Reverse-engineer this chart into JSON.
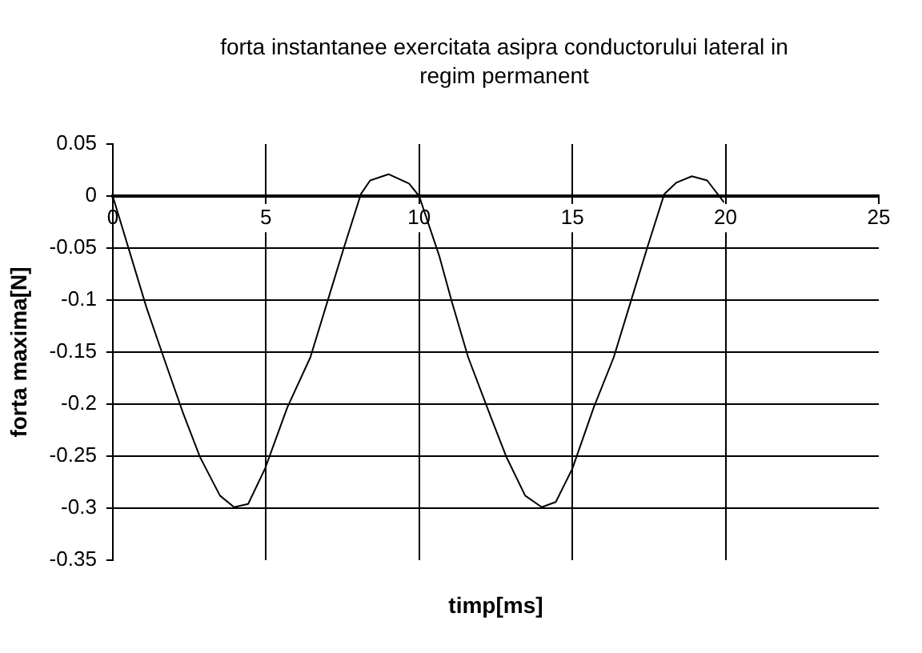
{
  "chart_data": {
    "type": "line",
    "title": "forta instantanee exercitata asipra conductorului lateral in regim permanent",
    "xlabel": "timp[ms]",
    "ylabel": "forta maxima[N]",
    "x": [
      0,
      1.1,
      1.66,
      2.3,
      2.85,
      3.5,
      3.96,
      4.42,
      4.97,
      5.7,
      6.45,
      7.0,
      7.55,
      8.1,
      8.4,
      9.0,
      9.67,
      10,
      10.65,
      11.07,
      11.6,
      12.36,
      12.85,
      13.46,
      14.0,
      14.46,
      15,
      15.7,
      16.35,
      16.9,
      17.45,
      18.0,
      18.4,
      18.9,
      19.4,
      19.95
    ],
    "series": [
      {
        "color": "#000000",
        "values": [
          0,
          -0.107,
          -0.155,
          -0.209,
          -0.251,
          -0.288,
          -0.299,
          -0.296,
          -0.262,
          -0.203,
          -0.155,
          -0.102,
          -0.049,
          0.002,
          0.015,
          0.021,
          0.012,
          0,
          -0.057,
          -0.102,
          -0.155,
          -0.214,
          -0.251,
          -0.288,
          -0.299,
          -0.294,
          -0.262,
          -0.203,
          -0.155,
          -0.102,
          -0.049,
          0.002,
          0.013,
          0.019,
          0.015,
          -0.006
        ]
      }
    ],
    "xlim": [
      0,
      25
    ],
    "xticks": [
      0,
      5,
      10,
      15,
      20,
      25
    ],
    "ylim": [
      -0.35,
      0.05
    ],
    "yticks": [
      0.05,
      0,
      -0.05,
      -0.1,
      -0.15,
      -0.2,
      -0.25,
      -0.3,
      -0.35
    ],
    "grid": true,
    "legend": false,
    "marker": "none",
    "line_style": "solid"
  }
}
